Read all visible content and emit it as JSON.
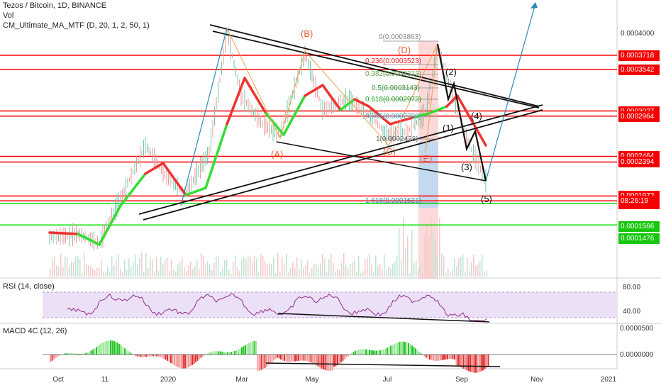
{
  "legend": {
    "title": "Tezos / Bitcoin, 1D, BINANCE",
    "vol": "Vol",
    "indicator": "CM_Ultimate_MA_MTF (D, 20, 1, 2, 50, 1)"
  },
  "rsi_label": "RSI (14, close)",
  "macd_label": "MACD 4C (12, 26)",
  "colors": {
    "red_level": "#ff0000",
    "green_level": "#00e000",
    "price_tag_red": "#f50000",
    "price_tag_green": "#16c60c",
    "ma_up": "#33dd33",
    "ma_down": "#ee3333",
    "rsi_line": "#8e2d8e",
    "rsi_band": "#e8d4f5",
    "projection": "#2a8ab8",
    "wave_label": "#e8633a",
    "fib": "#888888"
  },
  "chart_data": {
    "type": "candlestick",
    "title": "Tezos / Bitcoin, 1D, BINANCE",
    "x_tick_labels": [
      "Oct",
      "11",
      "2020",
      "Mar",
      "May",
      "Jul",
      "Sep",
      "Nov",
      "2021"
    ],
    "price_axis_ticks": [
      "0.0004000",
      "0.0001566",
      "0.0001476"
    ],
    "levels_red": [
      "0.0003718",
      "0.0003542",
      "0.0003027",
      "0.0002964",
      "0.0002464",
      "0.0002394",
      "0.0001972",
      "0.0001911"
    ],
    "levels_green": [
      "0.0001880"
    ],
    "price_tags_green": [
      "0.0001566",
      "0.0001476"
    ],
    "countdown": "08:26:19",
    "fib_labels": [
      "0(0.0003863)",
      "0.236(0.0003523)",
      "0.382(0.0003313)",
      "0.5(0.0003143)",
      "0.618(0.0002973)",
      "0.786(0.0002730)",
      "1(0.0002423)",
      "1.618(0.0001531)"
    ],
    "wave_labels_orange": [
      "(A)",
      "(B)",
      "(C)",
      "(D)",
      "(E)"
    ],
    "wave_labels_black": [
      "(1)",
      "(2)",
      "(3)",
      "(4)",
      "(5)"
    ],
    "rsi": {
      "label": "RSI (14, close)",
      "ticks": [
        "80.00",
        "40.00"
      ]
    },
    "macd": {
      "label": "MACD 4C (12, 26)",
      "ticks": [
        "0.0000500",
        "0.0000000"
      ]
    }
  }
}
